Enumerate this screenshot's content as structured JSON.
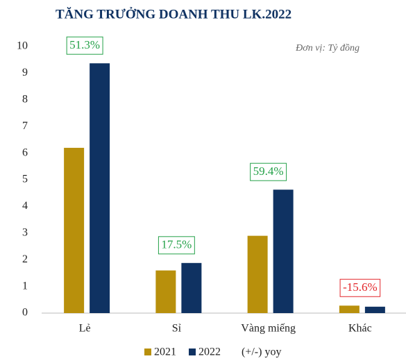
{
  "chart_data": {
    "type": "bar",
    "title": "TĂNG TRƯỞNG DOANH THU LK.2022",
    "subtitle": "Đơn vị: Tỷ đồng",
    "categories": [
      "Lẻ",
      "Sỉ",
      "Vàng miếng",
      "Khác"
    ],
    "series": [
      {
        "name": "2021",
        "color": "#b8900c",
        "values": [
          6.2,
          1.6,
          2.9,
          0.28
        ]
      },
      {
        "name": "2022",
        "color": "#0f3262",
        "values": [
          9.37,
          1.88,
          4.63,
          0.24
        ]
      }
    ],
    "yoy": {
      "name": "(+/-) yoy",
      "values": [
        51.3,
        17.5,
        59.4,
        -15.6
      ],
      "value_labels": [
        "51.3%",
        "17.5%",
        "59.4%",
        "-15.6%"
      ],
      "colors": [
        "#24a148",
        "#24a148",
        "#24a148",
        "#e3262a"
      ]
    },
    "ylim": [
      0,
      10
    ],
    "yticks": [
      0,
      1,
      2,
      3,
      4,
      5,
      6,
      7,
      8,
      9,
      10
    ],
    "grid": false
  }
}
